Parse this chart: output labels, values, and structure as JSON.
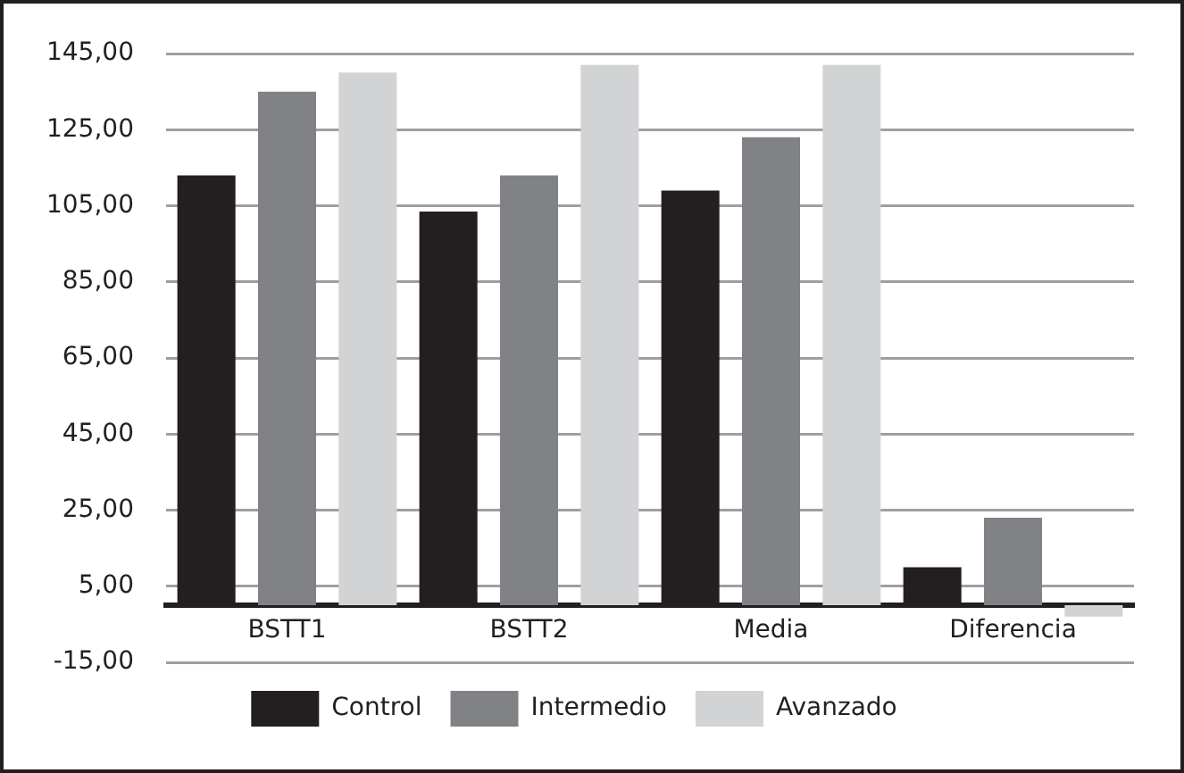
{
  "chart_data": {
    "type": "bar",
    "categories": [
      "BSTT1",
      "BSTT2",
      "Media",
      "Diferencia"
    ],
    "series": [
      {
        "name": "Control",
        "color": "#231f20",
        "values": [
          113,
          103.5,
          109,
          10
        ]
      },
      {
        "name": "Intermedio",
        "color": "#808285",
        "values": [
          135,
          113,
          123,
          23
        ]
      },
      {
        "name": "Avanzado",
        "color": "#d1d3d4",
        "values": [
          140,
          142,
          142,
          -3
        ]
      }
    ],
    "ylim": [
      -15,
      145
    ],
    "yticks": [
      {
        "value": -15,
        "label": "-15,00"
      },
      {
        "value": 5,
        "label": "5,00"
      },
      {
        "value": 25,
        "label": "25,00"
      },
      {
        "value": 45,
        "label": "45,00"
      },
      {
        "value": 65,
        "label": "65,00"
      },
      {
        "value": 85,
        "label": "85,00"
      },
      {
        "value": 105,
        "label": "105,00"
      },
      {
        "value": 125,
        "label": "125,00"
      },
      {
        "value": 145,
        "label": "145,00"
      }
    ],
    "grid": "y",
    "legend": "bottom"
  }
}
